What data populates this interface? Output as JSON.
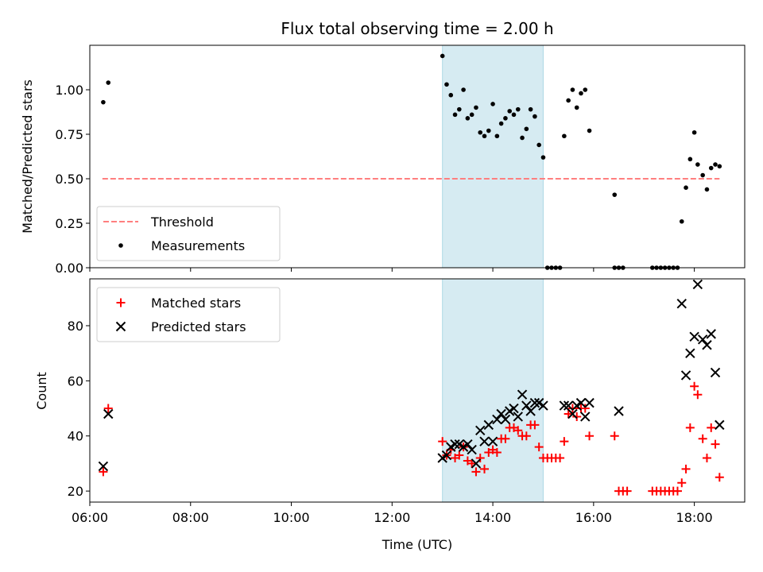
{
  "chart_data": [
    {
      "type": "scatter",
      "title": "Flux total observing time = 2.00 h",
      "ylabel": "Matched/Predicted stars",
      "xlabel": "",
      "xlim": [
        "06:00",
        "19:00"
      ],
      "ylim": [
        0,
        1.25
      ],
      "grid": false,
      "legend_position": "lower-left",
      "yticks": [
        {
          "v": 0.0,
          "label": "0.00"
        },
        {
          "v": 0.25,
          "label": "0.25"
        },
        {
          "v": 0.5,
          "label": "0.50"
        },
        {
          "v": 0.75,
          "label": "0.75"
        },
        {
          "v": 1.0,
          "label": "1.00"
        }
      ],
      "shaded_region": {
        "x": [
          "13:00",
          "15:00"
        ],
        "color": "#add8e6"
      },
      "threshold": {
        "name": "Threshold",
        "y": 0.5,
        "x": [
          "06:15",
          "18:30"
        ],
        "color": "#ff7f7f"
      },
      "series": [
        {
          "name": "Measurements",
          "color": "#000000",
          "marker": "dot",
          "points": [
            [
              "06:16",
              0.93
            ],
            [
              "06:22",
              1.04
            ],
            [
              "13:00",
              1.19
            ],
            [
              "13:05",
              1.03
            ],
            [
              "13:10",
              0.97
            ],
            [
              "13:15",
              0.86
            ],
            [
              "13:20",
              0.89
            ],
            [
              "13:25",
              1.0
            ],
            [
              "13:30",
              0.84
            ],
            [
              "13:35",
              0.86
            ],
            [
              "13:40",
              0.9
            ],
            [
              "13:45",
              0.76
            ],
            [
              "13:50",
              0.74
            ],
            [
              "13:55",
              0.77
            ],
            [
              "14:00",
              0.92
            ],
            [
              "14:05",
              0.74
            ],
            [
              "14:10",
              0.81
            ],
            [
              "14:15",
              0.84
            ],
            [
              "14:20",
              0.88
            ],
            [
              "14:25",
              0.86
            ],
            [
              "14:30",
              0.89
            ],
            [
              "14:35",
              0.73
            ],
            [
              "14:40",
              0.78
            ],
            [
              "14:45",
              0.89
            ],
            [
              "14:50",
              0.85
            ],
            [
              "14:55",
              0.69
            ],
            [
              "15:00",
              0.62
            ],
            [
              "15:05",
              0.0
            ],
            [
              "15:10",
              0.0
            ],
            [
              "15:15",
              0.0
            ],
            [
              "15:20",
              0.0
            ],
            [
              "15:25",
              0.74
            ],
            [
              "15:30",
              0.94
            ],
            [
              "15:35",
              1.0
            ],
            [
              "15:40",
              0.9
            ],
            [
              "15:45",
              0.98
            ],
            [
              "15:50",
              1.0
            ],
            [
              "15:55",
              0.77
            ],
            [
              "16:25",
              0.41
            ],
            [
              "16:25",
              0.0
            ],
            [
              "16:30",
              0.0
            ],
            [
              "16:35",
              0.0
            ],
            [
              "17:10",
              0.0
            ],
            [
              "17:15",
              0.0
            ],
            [
              "17:20",
              0.0
            ],
            [
              "17:25",
              0.0
            ],
            [
              "17:30",
              0.0
            ],
            [
              "17:35",
              0.0
            ],
            [
              "17:40",
              0.0
            ],
            [
              "17:45",
              0.26
            ],
            [
              "17:50",
              0.45
            ],
            [
              "17:55",
              0.61
            ],
            [
              "18:00",
              0.76
            ],
            [
              "18:04",
              0.58
            ],
            [
              "18:10",
              0.52
            ],
            [
              "18:15",
              0.44
            ],
            [
              "18:20",
              0.56
            ],
            [
              "18:25",
              0.58
            ],
            [
              "18:30",
              0.57
            ]
          ]
        }
      ]
    },
    {
      "type": "scatter",
      "title": "",
      "xlabel": "Time (UTC)",
      "ylabel": "Count",
      "xlim": [
        "06:00",
        "19:00"
      ],
      "ylim": [
        16,
        97
      ],
      "grid": false,
      "legend_position": "upper-left",
      "xticks": [
        {
          "v": "06:00",
          "label": "06:00"
        },
        {
          "v": "08:00",
          "label": "08:00"
        },
        {
          "v": "10:00",
          "label": "10:00"
        },
        {
          "v": "12:00",
          "label": "12:00"
        },
        {
          "v": "14:00",
          "label": "14:00"
        },
        {
          "v": "16:00",
          "label": "16:00"
        },
        {
          "v": "18:00",
          "label": "18:00"
        }
      ],
      "yticks": [
        {
          "v": 20,
          "label": "20"
        },
        {
          "v": 40,
          "label": "40"
        },
        {
          "v": 60,
          "label": "60"
        },
        {
          "v": 80,
          "label": "80"
        }
      ],
      "shaded_region": {
        "x": [
          "13:00",
          "15:00"
        ],
        "color": "#add8e6"
      },
      "series": [
        {
          "name": "Matched stars",
          "color": "#ff0000",
          "marker": "plus",
          "points": [
            [
              "06:16",
              27
            ],
            [
              "06:22",
              50
            ],
            [
              "13:00",
              38
            ],
            [
              "13:05",
              33
            ],
            [
              "13:10",
              35
            ],
            [
              "13:15",
              32
            ],
            [
              "13:20",
              33
            ],
            [
              "13:25",
              36
            ],
            [
              "13:30",
              31
            ],
            [
              "13:35",
              30
            ],
            [
              "13:40",
              27
            ],
            [
              "13:45",
              32
            ],
            [
              "13:50",
              28
            ],
            [
              "13:55",
              34
            ],
            [
              "14:00",
              35
            ],
            [
              "14:05",
              34
            ],
            [
              "14:10",
              39
            ],
            [
              "14:15",
              39
            ],
            [
              "14:20",
              43
            ],
            [
              "14:25",
              43
            ],
            [
              "14:30",
              42
            ],
            [
              "14:35",
              40
            ],
            [
              "14:40",
              40
            ],
            [
              "14:45",
              44
            ],
            [
              "14:50",
              44
            ],
            [
              "14:55",
              36
            ],
            [
              "15:00",
              32
            ],
            [
              "15:05",
              32
            ],
            [
              "15:10",
              32
            ],
            [
              "15:15",
              32
            ],
            [
              "15:20",
              32
            ],
            [
              "15:25",
              38
            ],
            [
              "15:30",
              48
            ],
            [
              "15:35",
              50
            ],
            [
              "15:40",
              47
            ],
            [
              "15:45",
              50
            ],
            [
              "15:50",
              50
            ],
            [
              "15:55",
              40
            ],
            [
              "16:25",
              40
            ],
            [
              "16:30",
              20
            ],
            [
              "16:35",
              20
            ],
            [
              "16:40",
              20
            ],
            [
              "17:10",
              20
            ],
            [
              "17:15",
              20
            ],
            [
              "17:20",
              20
            ],
            [
              "17:25",
              20
            ],
            [
              "17:30",
              20
            ],
            [
              "17:35",
              20
            ],
            [
              "17:40",
              20
            ],
            [
              "17:45",
              23
            ],
            [
              "17:50",
              28
            ],
            [
              "17:55",
              43
            ],
            [
              "18:00",
              58
            ],
            [
              "18:04",
              55
            ],
            [
              "18:10",
              39
            ],
            [
              "18:15",
              32
            ],
            [
              "18:20",
              43
            ],
            [
              "18:25",
              37
            ],
            [
              "18:30",
              25
            ]
          ]
        },
        {
          "name": "Predicted stars",
          "color": "#000000",
          "marker": "x",
          "points": [
            [
              "06:16",
              29
            ],
            [
              "06:22",
              48
            ],
            [
              "13:00",
              32
            ],
            [
              "13:05",
              33
            ],
            [
              "13:10",
              36
            ],
            [
              "13:15",
              37
            ],
            [
              "13:20",
              37
            ],
            [
              "13:25",
              36
            ],
            [
              "13:30",
              37
            ],
            [
              "13:35",
              35
            ],
            [
              "13:40",
              30
            ],
            [
              "13:45",
              42
            ],
            [
              "13:50",
              38
            ],
            [
              "13:55",
              44
            ],
            [
              "14:00",
              38
            ],
            [
              "14:05",
              46
            ],
            [
              "14:10",
              48
            ],
            [
              "14:15",
              46
            ],
            [
              "14:20",
              49
            ],
            [
              "14:25",
              50
            ],
            [
              "14:30",
              47
            ],
            [
              "14:35",
              55
            ],
            [
              "14:40",
              51
            ],
            [
              "14:45",
              49
            ],
            [
              "14:50",
              52
            ],
            [
              "14:55",
              52
            ],
            [
              "15:00",
              51
            ],
            [
              "15:25",
              51
            ],
            [
              "15:30",
              51
            ],
            [
              "15:35",
              48
            ],
            [
              "15:40",
              51
            ],
            [
              "15:45",
              52
            ],
            [
              "15:50",
              47
            ],
            [
              "15:55",
              52
            ],
            [
              "16:30",
              49
            ],
            [
              "17:45",
              88
            ],
            [
              "17:50",
              62
            ],
            [
              "17:55",
              70
            ],
            [
              "18:00",
              76
            ],
            [
              "18:04",
              95
            ],
            [
              "18:10",
              75
            ],
            [
              "18:15",
              73
            ],
            [
              "18:20",
              77
            ],
            [
              "18:25",
              63
            ],
            [
              "18:30",
              44
            ]
          ]
        }
      ]
    }
  ]
}
